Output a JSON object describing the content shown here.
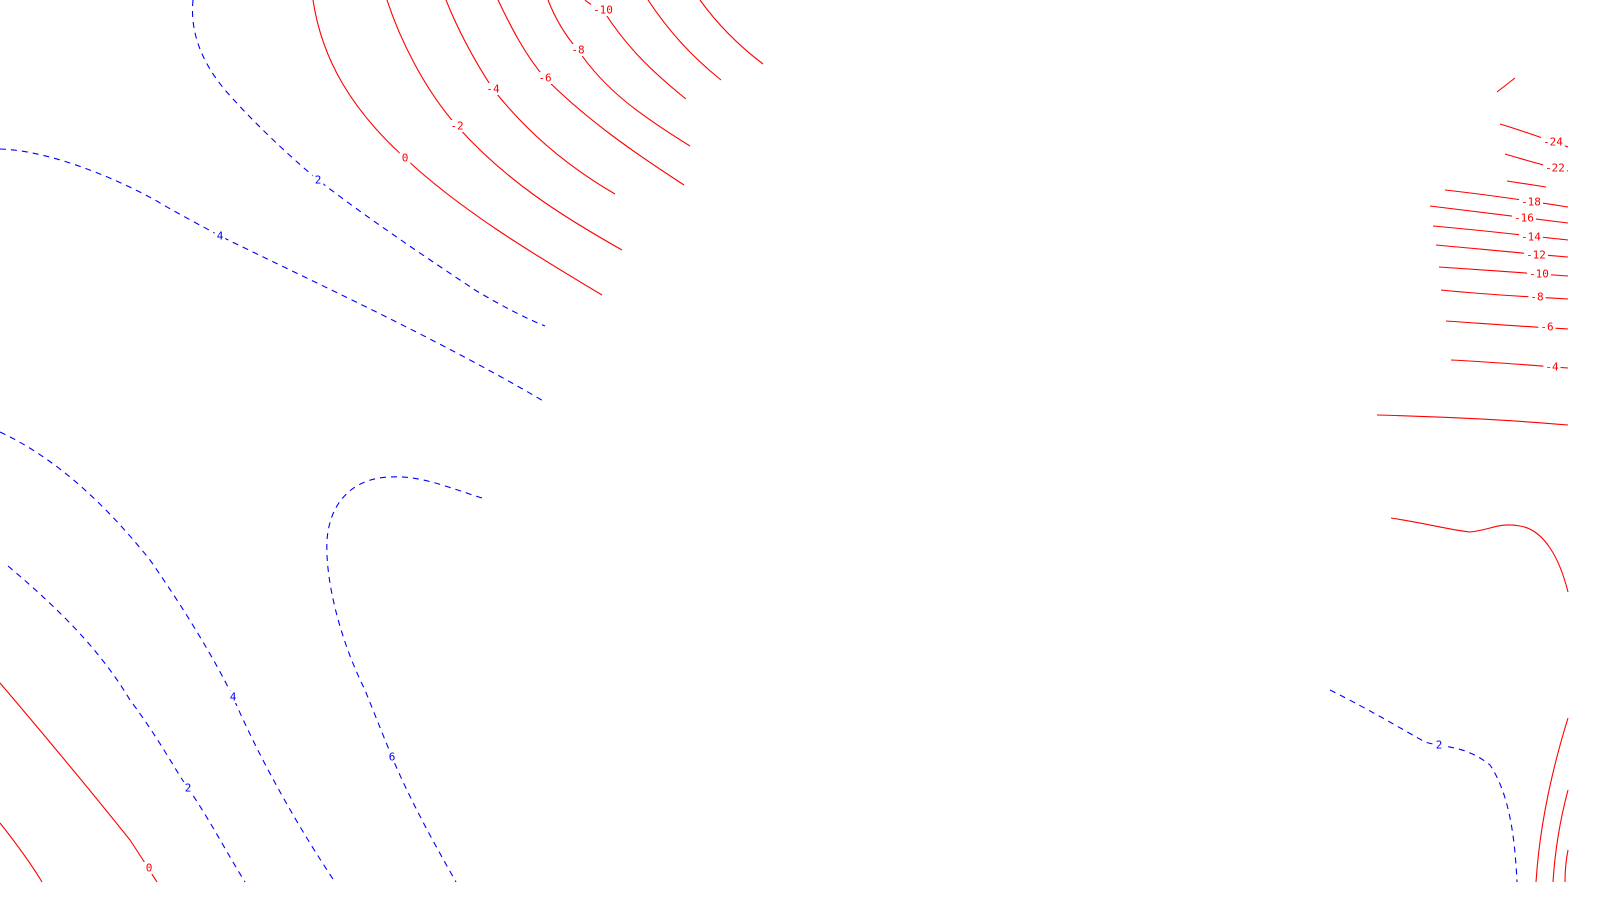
{
  "map": {
    "colors": {
      "negative": "#ff0000",
      "positive": "#0000ff",
      "background": "#ffffff"
    },
    "contour_levels": {
      "negative_solid": [
        "0",
        "-2",
        "-4",
        "-6",
        "-8",
        "-10",
        "-12",
        "-14",
        "-16",
        "-18",
        "-22",
        "-24"
      ],
      "positive_dashed": [
        "2",
        "4",
        "6"
      ]
    },
    "labels": {
      "l0": "-10",
      "l1": "-8",
      "l2": "-6",
      "l3": "-4",
      "l4": "-2",
      "l5": "0",
      "l6": "2",
      "l7": "4",
      "l8": "4",
      "l9": "2",
      "l10": "6",
      "l11": "0",
      "l12": "-24",
      "l13": "-22",
      "l14": "-18",
      "l15": "-16",
      "l16": "-14",
      "l17": "-12",
      "l18": "-10",
      "l19": "-8",
      "l20": "-6",
      "l21": "-4",
      "l22": "2"
    }
  }
}
